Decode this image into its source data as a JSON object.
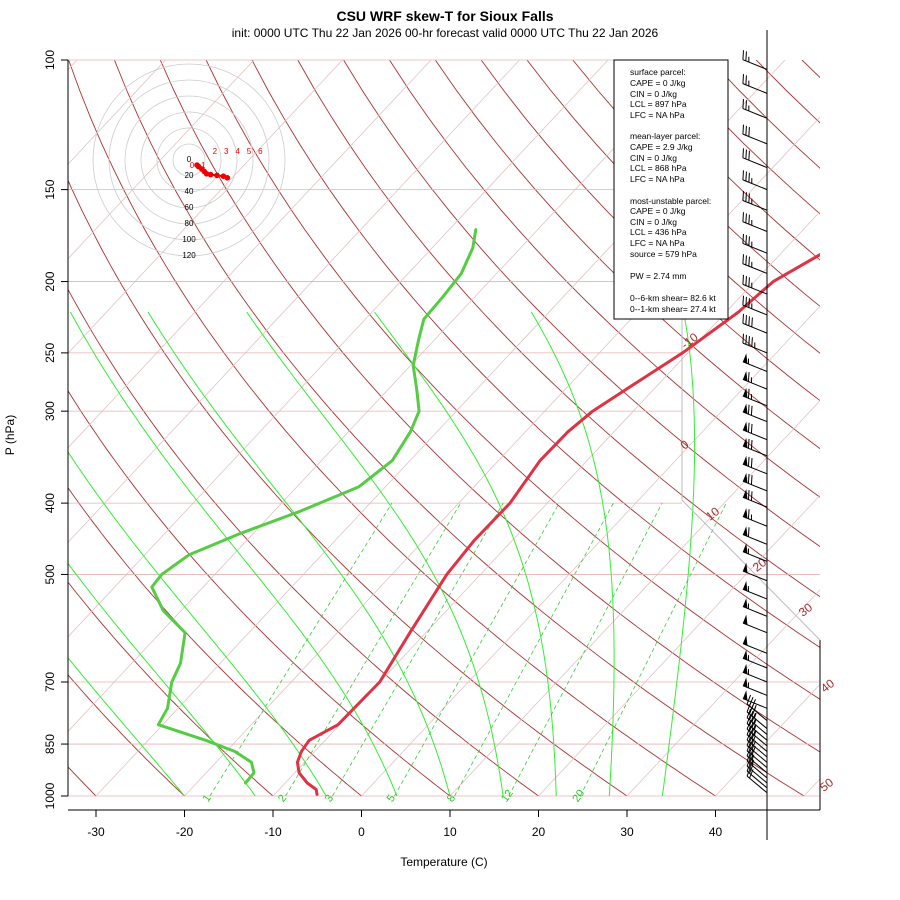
{
  "title": "CSU WRF skew-T for Sioux Falls",
  "subtitle": "init: 0000 UTC Thu 22 Jan 2026     00-hr forecast valid 0000 UTC Thu 22 Jan 2026",
  "chart_data": {
    "type": "line",
    "xlabel": "Temperature (C)",
    "ylabel": "P (hPa)",
    "pressure_ticks": [
      100,
      150,
      200,
      250,
      300,
      400,
      500,
      700,
      850,
      1000
    ],
    "temperature_ticks": [
      -30,
      -20,
      -10,
      0,
      10,
      20,
      30,
      40
    ],
    "isotherm_labels": [
      "-10",
      "0",
      "10",
      "20",
      "30",
      "40",
      "50"
    ],
    "mixing_ratio_labels": [
      "1",
      "2",
      "3",
      "5",
      "8",
      "12",
      "20"
    ],
    "series": [
      {
        "name": "temperature",
        "color": "#dd3344",
        "points": [
          [
            995,
            -5.2
          ],
          [
            980,
            -5.8
          ],
          [
            960,
            -7.5
          ],
          [
            930,
            -9.5
          ],
          [
            900,
            -10.8
          ],
          [
            870,
            -11.5
          ],
          [
            840,
            -11.8
          ],
          [
            800,
            -10.2
          ],
          [
            700,
            -10.0
          ],
          [
            600,
            -11.8
          ],
          [
            500,
            -13.8
          ],
          [
            450,
            -14.3
          ],
          [
            400,
            -14.2
          ],
          [
            350,
            -15.3
          ],
          [
            320,
            -15.2
          ],
          [
            300,
            -14.6
          ],
          [
            280,
            -13.1
          ],
          [
            250,
            -10.6
          ],
          [
            220,
            -8.6
          ],
          [
            200,
            -7.9
          ],
          [
            170,
            -3.2
          ],
          [
            150,
            0.1
          ],
          [
            130,
            3.6
          ],
          [
            115,
            6.0
          ],
          [
            105,
            8.8
          ]
        ]
      },
      {
        "name": "dewpoint",
        "color": "#55cc44",
        "points": [
          [
            960,
            -14.5
          ],
          [
            930,
            -14.6
          ],
          [
            900,
            -16.0
          ],
          [
            870,
            -19.0
          ],
          [
            840,
            -23.5
          ],
          [
            800,
            -30.5
          ],
          [
            760,
            -31.2
          ],
          [
            700,
            -33.5
          ],
          [
            660,
            -34.5
          ],
          [
            600,
            -37.2
          ],
          [
            560,
            -42.0
          ],
          [
            520,
            -45.8
          ],
          [
            500,
            -46.0
          ],
          [
            470,
            -45.0
          ],
          [
            440,
            -41.5
          ],
          [
            410,
            -37.0
          ],
          [
            380,
            -33.0
          ],
          [
            350,
            -32.0
          ],
          [
            320,
            -33.0
          ],
          [
            300,
            -34.2
          ],
          [
            280,
            -36.8
          ],
          [
            260,
            -39.7
          ],
          [
            240,
            -41.8
          ],
          [
            225,
            -43.4
          ],
          [
            210,
            -43.6
          ],
          [
            195,
            -44.0
          ],
          [
            180,
            -45.4
          ],
          [
            170,
            -47.0
          ]
        ]
      }
    ],
    "wind_barbs_kt": [
      {
        "p": 990,
        "spd": 20
      },
      {
        "p": 975,
        "spd": 22
      },
      {
        "p": 960,
        "spd": 24
      },
      {
        "p": 945,
        "spd": 26
      },
      {
        "p": 930,
        "spd": 28
      },
      {
        "p": 915,
        "spd": 30
      },
      {
        "p": 900,
        "spd": 32
      },
      {
        "p": 885,
        "spd": 33
      },
      {
        "p": 870,
        "spd": 34
      },
      {
        "p": 855,
        "spd": 35
      },
      {
        "p": 840,
        "spd": 35
      },
      {
        "p": 825,
        "spd": 36
      },
      {
        "p": 810,
        "spd": 37
      },
      {
        "p": 790,
        "spd": 38
      },
      {
        "p": 760,
        "spd": 50
      },
      {
        "p": 730,
        "spd": 55
      },
      {
        "p": 700,
        "spd": 55
      },
      {
        "p": 670,
        "spd": 55
      },
      {
        "p": 640,
        "spd": 50
      },
      {
        "p": 600,
        "spd": 50
      },
      {
        "p": 570,
        "spd": 55
      },
      {
        "p": 540,
        "spd": 55
      },
      {
        "p": 510,
        "spd": 50
      },
      {
        "p": 480,
        "spd": 55
      },
      {
        "p": 455,
        "spd": 60
      },
      {
        "p": 430,
        "spd": 65
      },
      {
        "p": 405,
        "spd": 70
      },
      {
        "p": 385,
        "spd": 70
      },
      {
        "p": 365,
        "spd": 70
      },
      {
        "p": 345,
        "spd": 70
      },
      {
        "p": 328,
        "spd": 70
      },
      {
        "p": 310,
        "spd": 70
      },
      {
        "p": 295,
        "spd": 65
      },
      {
        "p": 280,
        "spd": 65
      },
      {
        "p": 265,
        "spd": 55
      },
      {
        "p": 250,
        "spd": 45
      },
      {
        "p": 235,
        "spd": 40
      },
      {
        "p": 222,
        "spd": 35
      },
      {
        "p": 208,
        "spd": 35
      },
      {
        "p": 195,
        "spd": 35
      },
      {
        "p": 183,
        "spd": 35
      },
      {
        "p": 171,
        "spd": 35
      },
      {
        "p": 160,
        "spd": 35
      },
      {
        "p": 150,
        "spd": 35
      },
      {
        "p": 140,
        "spd": 30
      },
      {
        "p": 130,
        "spd": 30
      },
      {
        "p": 120,
        "spd": 25
      },
      {
        "p": 111,
        "spd": 25
      },
      {
        "p": 103,
        "spd": 25
      }
    ],
    "hodograph": {
      "ring_labels": [
        "0",
        "20",
        "40",
        "60",
        "80",
        "100",
        "120"
      ],
      "height_labels": [
        "0",
        "1",
        "2",
        "3",
        "4",
        "5",
        "6"
      ],
      "points_kt": [
        [
          0,
          0
        ],
        [
          2,
          -2
        ],
        [
          6,
          -5
        ],
        [
          9,
          -8
        ],
        [
          12,
          -11
        ],
        [
          17,
          -12
        ],
        [
          25,
          -13
        ],
        [
          33,
          -14
        ],
        [
          38,
          -16
        ]
      ]
    }
  },
  "stats": {
    "surface_header": "surface parcel:",
    "surface_cape": "CAPE = 0 J/kg",
    "surface_cin": "CIN = 0 J/kg",
    "surface_lcl": "LCL = 897 hPa",
    "surface_lfc": "LFC = NA hPa",
    "mean_header": "mean-layer parcel:",
    "mean_cape": "CAPE = 2.9 J/kg",
    "mean_cin": "CIN = 0 J/kg",
    "mean_lcl": "LCL = 868 hPa",
    "mean_lfc": "LFC = NA hPa",
    "mu_header": "most-unstable parcel:",
    "mu_cape": "CAPE = 0 J/kg",
    "mu_cin": "CIN = 0 J/kg",
    "mu_lcl": "LCL = 436 hPa",
    "mu_lfc": "LFC = NA hPa",
    "mu_source": "source = 579 hPa",
    "pw": "PW =  2.74 mm",
    "shear6": "0--6-km shear= 82.6 kt",
    "shear1": "0--1-km shear= 27.4 kt"
  }
}
